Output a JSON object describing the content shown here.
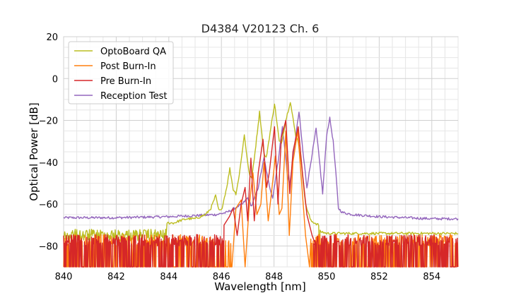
{
  "chart_data": {
    "type": "line",
    "title": "D4384 V20123 Ch. 6",
    "xlabel": "Wavelength [nm]",
    "ylabel": "Optical Power [dB]",
    "xlim": [
      840,
      855
    ],
    "ylim": [
      -90,
      20
    ],
    "xticks": [
      840,
      842,
      844,
      846,
      848,
      850,
      852,
      854
    ],
    "xtick_labels": [
      "840",
      "842",
      "844",
      "846",
      "848",
      "850",
      "852",
      "854"
    ],
    "yticks": [
      20,
      0,
      -20,
      -40,
      -60,
      -80
    ],
    "ytick_labels": [
      "20",
      "0",
      "−20",
      "−40",
      "−60",
      "−80"
    ],
    "grid": true,
    "legend_position": "top-left",
    "series": [
      {
        "name": "OptoBoard QA",
        "color": "#bcbd22",
        "floor": "flat",
        "noise_range": [
          840.0,
          843.9
        ],
        "clip_below": -90,
        "points": [
          [
            840.0,
            -74
          ],
          [
            841.0,
            -73
          ],
          [
            842.0,
            -72
          ],
          [
            843.0,
            -71
          ],
          [
            843.9,
            -69
          ],
          [
            844.2,
            -69
          ],
          [
            844.4,
            -68
          ],
          [
            844.7,
            -67
          ],
          [
            845.0,
            -67
          ],
          [
            845.2,
            -66
          ],
          [
            845.4,
            -65
          ],
          [
            845.6,
            -62
          ],
          [
            845.78,
            -56
          ],
          [
            845.9,
            -63
          ],
          [
            846.0,
            -63
          ],
          [
            846.2,
            -52
          ],
          [
            846.32,
            -43
          ],
          [
            846.45,
            -53
          ],
          [
            846.55,
            -55
          ],
          [
            846.68,
            -46
          ],
          [
            846.87,
            -27
          ],
          [
            847.05,
            -45
          ],
          [
            847.15,
            -48
          ],
          [
            847.28,
            -35
          ],
          [
            847.45,
            -16
          ],
          [
            847.62,
            -36
          ],
          [
            847.7,
            -38
          ],
          [
            847.85,
            -26
          ],
          [
            848.02,
            -12
          ],
          [
            848.2,
            -30
          ],
          [
            848.28,
            -31
          ],
          [
            848.45,
            -20
          ],
          [
            848.62,
            -11
          ],
          [
            848.82,
            -27
          ],
          [
            848.92,
            -30
          ],
          [
            849.05,
            -42
          ],
          [
            849.2,
            -60
          ],
          [
            849.4,
            -68
          ],
          [
            849.7,
            -70
          ],
          [
            849.72,
            -88
          ],
          [
            849.75,
            -73
          ],
          [
            850.0,
            -74
          ],
          [
            851.0,
            -74
          ],
          [
            852.0,
            -74
          ],
          [
            853.0,
            -74
          ],
          [
            854.0,
            -74
          ],
          [
            855.0,
            -74
          ]
        ]
      },
      {
        "name": "Post Burn-In",
        "color": "#ff7f0e",
        "floor": "noise",
        "noise_range": [
          840.0,
          846.4
        ],
        "noise_range_2": [
          849.4,
          855.0
        ],
        "clip_below": -90,
        "points": [
          [
            846.4,
            -90
          ],
          [
            846.55,
            -62
          ],
          [
            846.75,
            -58
          ],
          [
            846.9,
            -90
          ],
          [
            847.05,
            -62
          ],
          [
            847.2,
            -45
          ],
          [
            847.35,
            -65
          ],
          [
            847.5,
            -60
          ],
          [
            847.62,
            -40
          ],
          [
            847.78,
            -68
          ],
          [
            847.9,
            -55
          ],
          [
            848.05,
            -37
          ],
          [
            848.2,
            -65
          ],
          [
            848.3,
            -62
          ],
          [
            848.45,
            -25
          ],
          [
            848.58,
            -75
          ],
          [
            848.72,
            -40
          ],
          [
            848.9,
            -25
          ],
          [
            849.05,
            -50
          ],
          [
            849.2,
            -75
          ],
          [
            849.35,
            -90
          ]
        ]
      },
      {
        "name": "Pre Burn-In",
        "color": "#d62728",
        "floor": "noise",
        "noise_range": [
          840.0,
          846.1
        ],
        "noise_range_2": [
          849.5,
          855.0
        ],
        "clip_below": -90,
        "points": [
          [
            846.1,
            -70
          ],
          [
            846.3,
            -66
          ],
          [
            846.45,
            -62
          ],
          [
            846.6,
            -75
          ],
          [
            846.75,
            -60
          ],
          [
            846.9,
            -52
          ],
          [
            847.0,
            -68
          ],
          [
            847.12,
            -38
          ],
          [
            847.25,
            -68
          ],
          [
            847.4,
            -45
          ],
          [
            847.58,
            -29
          ],
          [
            847.72,
            -52
          ],
          [
            847.82,
            -45
          ],
          [
            848.02,
            -23
          ],
          [
            848.15,
            -60
          ],
          [
            848.28,
            -28
          ],
          [
            848.45,
            -20
          ],
          [
            848.6,
            -55
          ],
          [
            848.72,
            -35
          ],
          [
            848.92,
            -23
          ],
          [
            849.08,
            -45
          ],
          [
            849.25,
            -65
          ],
          [
            849.45,
            -75
          ],
          [
            849.6,
            -80
          ]
        ]
      },
      {
        "name": "Reception Test",
        "color": "#9467bd",
        "floor": "flat",
        "clip_below": -90,
        "points": [
          [
            840.0,
            -66.5
          ],
          [
            842.0,
            -66.5
          ],
          [
            844.0,
            -66
          ],
          [
            845.0,
            -65.5
          ],
          [
            845.8,
            -65
          ],
          [
            846.2,
            -64
          ],
          [
            846.5,
            -62
          ],
          [
            846.8,
            -60
          ],
          [
            847.0,
            -57
          ],
          [
            847.15,
            -61
          ],
          [
            847.4,
            -52
          ],
          [
            847.62,
            -38
          ],
          [
            847.8,
            -50
          ],
          [
            847.95,
            -57
          ],
          [
            848.15,
            -40
          ],
          [
            848.32,
            -23
          ],
          [
            848.5,
            -45
          ],
          [
            848.6,
            -51
          ],
          [
            848.8,
            -30
          ],
          [
            848.95,
            -16
          ],
          [
            849.1,
            -35
          ],
          [
            849.25,
            -52
          ],
          [
            849.45,
            -36
          ],
          [
            849.6,
            -24
          ],
          [
            849.75,
            -42
          ],
          [
            849.85,
            -55
          ],
          [
            850.0,
            -27
          ],
          [
            850.12,
            -19
          ],
          [
            850.25,
            -30
          ],
          [
            850.35,
            -45
          ],
          [
            850.45,
            -62
          ],
          [
            850.6,
            -64
          ],
          [
            851.0,
            -65
          ],
          [
            852.0,
            -66
          ],
          [
            853.0,
            -66.5
          ],
          [
            854.0,
            -67
          ],
          [
            855.0,
            -67
          ]
        ]
      }
    ]
  }
}
